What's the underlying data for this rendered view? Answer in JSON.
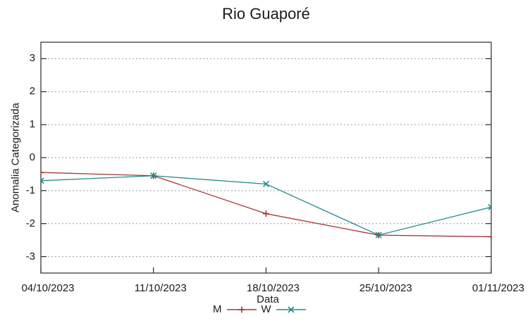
{
  "title": "Rio Guaporé",
  "chart_data": {
    "type": "line",
    "title": "Rio Guaporé",
    "xlabel": "Data",
    "ylabel": "Anomalia Categorizada",
    "categories": [
      "04/10/2023",
      "11/10/2023",
      "18/10/2023",
      "25/10/2023",
      "01/11/2023"
    ],
    "series": [
      {
        "name": "M",
        "marker": "plus",
        "color": "#a93232",
        "values": [
          -0.45,
          -0.55,
          -1.7,
          -2.35,
          -2.4
        ]
      },
      {
        "name": "W",
        "marker": "cross",
        "color": "#1f8b8b",
        "values": [
          -0.7,
          -0.55,
          -0.8,
          -2.35,
          -1.5
        ]
      }
    ],
    "ylim": [
      -3.5,
      3.5
    ],
    "yticks": [
      -3,
      -2,
      -1,
      0,
      1,
      2,
      3
    ],
    "grid": "horizontal-dashed",
    "legend_position": "bottom-center",
    "frame_color": "#2a2a2a",
    "grid_color": "#9a9a9a",
    "text_color": "#1a1a1a"
  }
}
